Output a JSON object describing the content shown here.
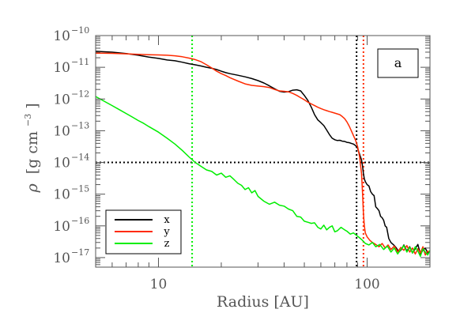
{
  "chart_data": {
    "type": "line",
    "panel_label": "a",
    "xlabel": "Radius [AU]",
    "ylabel_symbol": "ρ",
    "ylabel_units": "[g cm",
    "ylabel_exp": "−3",
    "ylabel_close": "]",
    "x_scale": "log",
    "y_scale": "log",
    "xlim": [
      5,
      200
    ],
    "ylim": [
      5e-18,
      1e-10
    ],
    "x_ticks": [
      {
        "value": 10,
        "label": "10"
      },
      {
        "value": 100,
        "label": "100"
      }
    ],
    "y_ticks": [
      {
        "value": 1e-10,
        "base": "10",
        "exp": "−10"
      },
      {
        "value": 1e-11,
        "base": "10",
        "exp": "−11"
      },
      {
        "value": 1e-12,
        "base": "10",
        "exp": "−12"
      },
      {
        "value": 1e-13,
        "base": "10",
        "exp": "−13"
      },
      {
        "value": 1e-14,
        "base": "10",
        "exp": "−14"
      },
      {
        "value": 1e-15,
        "base": "10",
        "exp": "−15"
      },
      {
        "value": 1e-16,
        "base": "10",
        "exp": "−16"
      },
      {
        "value": 1e-17,
        "base": "10",
        "exp": "−17"
      }
    ],
    "legend_position": "lower-left",
    "series": [
      {
        "name": "x",
        "color": "#000000",
        "points": [
          [
            5,
            3.2e-11
          ],
          [
            6,
            3e-11
          ],
          [
            7,
            2.7e-11
          ],
          [
            8,
            2.4e-11
          ],
          [
            9,
            2.1e-11
          ],
          [
            10,
            1.9e-11
          ],
          [
            11,
            1.7e-11
          ],
          [
            12,
            1.6e-11
          ],
          [
            13,
            1.45e-11
          ],
          [
            14,
            1.3e-11
          ],
          [
            15,
            1.2e-11
          ],
          [
            16,
            1.1e-11
          ],
          [
            17,
            1e-11
          ],
          [
            18,
            9.3e-12
          ],
          [
            19,
            8.5e-12
          ],
          [
            20,
            7.5e-12
          ],
          [
            21,
            6.8e-12
          ],
          [
            22,
            6.3e-12
          ],
          [
            24,
            5.6e-12
          ],
          [
            26,
            5e-12
          ],
          [
            28,
            4.4e-12
          ],
          [
            30,
            3.8e-12
          ],
          [
            32,
            3.2e-12
          ],
          [
            34,
            2.6e-12
          ],
          [
            36,
            2.1e-12
          ],
          [
            38,
            1.75e-12
          ],
          [
            40,
            1.65e-12
          ],
          [
            42,
            1.7e-12
          ],
          [
            44,
            1.9e-12
          ],
          [
            46,
            1.95e-12
          ],
          [
            48,
            1.8e-12
          ],
          [
            50,
            1.3e-12
          ],
          [
            52,
            9e-13
          ],
          [
            54,
            5.5e-13
          ],
          [
            56,
            3.2e-13
          ],
          [
            58,
            2.2e-13
          ],
          [
            60,
            1.8e-13
          ],
          [
            62,
            1.45e-13
          ],
          [
            64,
            1.05e-13
          ],
          [
            66,
            7.5e-14
          ],
          [
            68,
            5.8e-14
          ],
          [
            70,
            5.2e-14
          ],
          [
            72,
            4.9e-14
          ],
          [
            74,
            5e-14
          ],
          [
            76,
            4.7e-14
          ],
          [
            78,
            4.6e-14
          ],
          [
            80,
            4.3e-14
          ],
          [
            82,
            4.2e-14
          ],
          [
            84,
            4e-14
          ],
          [
            86,
            3.8e-14
          ],
          [
            88,
            3.4e-14
          ],
          [
            90,
            2.8e-14
          ],
          [
            92,
            1.8e-14
          ],
          [
            94,
            1.2e-14
          ],
          [
            95,
            8e-15
          ],
          [
            96,
            4.5e-15
          ],
          [
            97,
            3e-15
          ],
          [
            98,
            2.5e-15
          ],
          [
            99,
            2.2e-15
          ],
          [
            100,
            2e-15
          ],
          [
            102,
            1.8e-15
          ],
          [
            104,
            1.2e-15
          ],
          [
            106,
            1e-15
          ],
          [
            108,
            9e-16
          ],
          [
            110,
            4e-16
          ],
          [
            112,
            3.5e-16
          ],
          [
            114,
            3e-16
          ],
          [
            116,
            2e-16
          ],
          [
            118,
            1.8e-16
          ],
          [
            120,
            1.5e-16
          ],
          [
            122,
            1e-16
          ],
          [
            124,
            9e-17
          ],
          [
            127,
            4e-17
          ],
          [
            130,
            3e-17
          ],
          [
            134,
            2.5e-17
          ],
          [
            138,
            2e-17
          ],
          [
            142,
            1.5e-17
          ],
          [
            146,
            1.8e-17
          ],
          [
            150,
            2.5e-17
          ],
          [
            155,
            1.6e-17
          ],
          [
            160,
            2.2e-17
          ],
          [
            165,
            1.4e-17
          ],
          [
            170,
            1.9e-17
          ],
          [
            175,
            2.6e-17
          ],
          [
            180,
            1.3e-17
          ],
          [
            185,
            1.7e-17
          ],
          [
            190,
            2e-17
          ],
          [
            195,
            1.4e-17
          ],
          [
            200,
            1.6e-17
          ]
        ]
      },
      {
        "name": "y",
        "color": "#ff2a00",
        "points": [
          [
            5,
            2.8e-11
          ],
          [
            6,
            2.75e-11
          ],
          [
            7,
            2.65e-11
          ],
          [
            8,
            2.55e-11
          ],
          [
            9,
            2.5e-11
          ],
          [
            10,
            2.45e-11
          ],
          [
            11,
            2.4e-11
          ],
          [
            12,
            2.3e-11
          ],
          [
            13,
            2.15e-11
          ],
          [
            14,
            1.95e-11
          ],
          [
            15,
            1.75e-11
          ],
          [
            16,
            1.5e-11
          ],
          [
            17,
            1.2e-11
          ],
          [
            18,
            9.5e-12
          ],
          [
            19,
            7.5e-12
          ],
          [
            20,
            6.3e-12
          ],
          [
            21,
            5.5e-12
          ],
          [
            22,
            4.7e-12
          ],
          [
            24,
            3.7e-12
          ],
          [
            26,
            3e-12
          ],
          [
            28,
            2.7e-12
          ],
          [
            30,
            2.55e-12
          ],
          [
            32,
            2.45e-12
          ],
          [
            34,
            2.3e-12
          ],
          [
            36,
            2e-12
          ],
          [
            38,
            1.8e-12
          ],
          [
            40,
            1.75e-12
          ],
          [
            42,
            1.68e-12
          ],
          [
            44,
            1.5e-12
          ],
          [
            46,
            1.3e-12
          ],
          [
            48,
            1.1e-12
          ],
          [
            50,
            9.5e-13
          ],
          [
            52,
            8e-13
          ],
          [
            54,
            7e-13
          ],
          [
            56,
            6.2e-13
          ],
          [
            58,
            5.5e-13
          ],
          [
            60,
            5e-13
          ],
          [
            62,
            4.6e-13
          ],
          [
            64,
            4.3e-13
          ],
          [
            66,
            4e-13
          ],
          [
            68,
            3.8e-13
          ],
          [
            70,
            3.6e-13
          ],
          [
            72,
            3.4e-13
          ],
          [
            74,
            3.2e-13
          ],
          [
            76,
            2.8e-13
          ],
          [
            78,
            2.4e-13
          ],
          [
            80,
            1.9e-13
          ],
          [
            82,
            1.4e-13
          ],
          [
            84,
            1e-13
          ],
          [
            86,
            7e-14
          ],
          [
            88,
            5e-14
          ],
          [
            90,
            3.2e-14
          ],
          [
            91,
            2.2e-14
          ],
          [
            92,
            1.5e-14
          ],
          [
            93,
            8e-15
          ],
          [
            94,
            4.5e-15
          ],
          [
            95,
            1.2e-15
          ],
          [
            96,
            2.5e-16
          ],
          [
            97,
            1e-16
          ],
          [
            98,
            6e-17
          ],
          [
            100,
            4.5e-17
          ],
          [
            103,
            3.5e-17
          ],
          [
            106,
            3e-17
          ],
          [
            110,
            2.6e-17
          ],
          [
            114,
            2.2e-17
          ],
          [
            118,
            2.8e-17
          ],
          [
            122,
            2e-17
          ],
          [
            126,
            2.5e-17
          ],
          [
            130,
            1.8e-17
          ],
          [
            135,
            2.3e-17
          ],
          [
            140,
            1.5e-17
          ],
          [
            145,
            2.1e-17
          ],
          [
            150,
            1.7e-17
          ],
          [
            155,
            2.4e-17
          ],
          [
            160,
            1.5e-17
          ],
          [
            165,
            2e-17
          ],
          [
            170,
            1.3e-17
          ],
          [
            175,
            1.9e-17
          ],
          [
            180,
            1.4e-17
          ],
          [
            185,
            2.2e-17
          ],
          [
            190,
            1.2e-17
          ],
          [
            195,
            1.6e-17
          ],
          [
            200,
            1.5e-17
          ]
        ]
      },
      {
        "name": "z",
        "color": "#00ee00",
        "points": [
          [
            5,
            1.2e-12
          ],
          [
            5.5,
            8.5e-13
          ],
          [
            6,
            6.2e-13
          ],
          [
            6.5,
            4.6e-13
          ],
          [
            7,
            3.5e-13
          ],
          [
            7.5,
            2.7e-13
          ],
          [
            8,
            2.1e-13
          ],
          [
            8.5,
            1.7e-13
          ],
          [
            9,
            1.35e-13
          ],
          [
            10,
            9e-14
          ],
          [
            11,
            5.8e-14
          ],
          [
            12,
            3.8e-14
          ],
          [
            13,
            2.4e-14
          ],
          [
            14,
            1.5e-14
          ],
          [
            15,
            1e-14
          ],
          [
            16,
            7.5e-15
          ],
          [
            17,
            5.8e-15
          ],
          [
            18,
            5.2e-15
          ],
          [
            19,
            4e-15
          ],
          [
            20,
            4.6e-15
          ],
          [
            21,
            3.4e-15
          ],
          [
            22,
            3.8e-15
          ],
          [
            23,
            2.9e-15
          ],
          [
            24,
            2.2e-15
          ],
          [
            25,
            1.9e-15
          ],
          [
            26,
            1.4e-15
          ],
          [
            27,
            1.6e-15
          ],
          [
            28,
            1.1e-15
          ],
          [
            29,
            1.3e-15
          ],
          [
            30,
            8.5e-16
          ],
          [
            32,
            6e-16
          ],
          [
            34,
            4.8e-16
          ],
          [
            36,
            5.6e-16
          ],
          [
            38,
            4.5e-16
          ],
          [
            40,
            4.2e-16
          ],
          [
            42,
            3.4e-16
          ],
          [
            44,
            3e-16
          ],
          [
            46,
            2e-16
          ],
          [
            48,
            1.9e-16
          ],
          [
            50,
            1.4e-16
          ],
          [
            52,
            1.3e-16
          ],
          [
            54,
            1.2e-16
          ],
          [
            56,
            1.25e-16
          ],
          [
            58,
            9e-17
          ],
          [
            60,
            8e-17
          ],
          [
            62,
            1.05e-16
          ],
          [
            64,
            7.5e-17
          ],
          [
            66,
            9e-17
          ],
          [
            68,
            1e-16
          ],
          [
            70,
            6.5e-17
          ],
          [
            72,
            7e-17
          ],
          [
            75,
            9e-17
          ],
          [
            78,
            7.5e-17
          ],
          [
            80,
            6.8e-17
          ],
          [
            83,
            5.5e-17
          ],
          [
            86,
            6e-17
          ],
          [
            89,
            5e-17
          ],
          [
            92,
            4.2e-17
          ],
          [
            95,
            3.5e-17
          ],
          [
            98,
            2.8e-17
          ],
          [
            102,
            2.5e-17
          ],
          [
            106,
            3e-17
          ],
          [
            110,
            2.2e-17
          ],
          [
            115,
            2.6e-17
          ],
          [
            120,
            1.8e-17
          ],
          [
            125,
            2.3e-17
          ],
          [
            130,
            1.5e-17
          ],
          [
            135,
            2e-17
          ],
          [
            140,
            1.3e-17
          ],
          [
            145,
            1.8e-17
          ],
          [
            150,
            2.4e-17
          ],
          [
            155,
            1.5e-17
          ],
          [
            160,
            2.1e-17
          ],
          [
            165,
            1.4e-17
          ],
          [
            170,
            2.2e-17
          ],
          [
            175,
            1.6e-17
          ],
          [
            180,
            1.1e-17
          ],
          [
            185,
            1.9e-17
          ],
          [
            190,
            1.5e-17
          ],
          [
            195,
            1.2e-17
          ],
          [
            200,
            1.7e-17
          ]
        ]
      }
    ],
    "reference_lines": [
      {
        "orientation": "horizontal",
        "value": 1e-14,
        "color": "#000000",
        "style": "dotted"
      },
      {
        "orientation": "vertical",
        "value": 14.5,
        "color": "#00ee00",
        "style": "dotted"
      },
      {
        "orientation": "vertical",
        "value": 89,
        "color": "#000000",
        "style": "dotted"
      },
      {
        "orientation": "vertical",
        "value": 96,
        "color": "#ff2a00",
        "style": "dotted"
      }
    ]
  }
}
